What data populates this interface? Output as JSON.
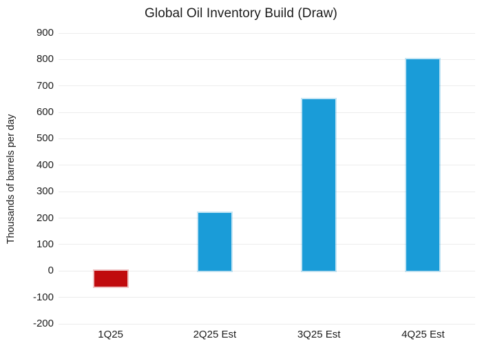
{
  "chart_data": {
    "type": "bar",
    "title": "Global Oil Inventory Build (Draw)",
    "xlabel": "",
    "ylabel": "Thousands of barrels per day",
    "categories": [
      "1Q25",
      "2Q25 Est",
      "3Q25 Est",
      "4Q25 Est"
    ],
    "values": [
      -60,
      220,
      650,
      800
    ],
    "bar_colors": [
      "#c00b0e",
      "#1a9cd8",
      "#1a9cd8",
      "#1a9cd8"
    ],
    "ylim": [
      -200,
      900
    ],
    "yticks": [
      900,
      800,
      700,
      600,
      500,
      400,
      300,
      200,
      100,
      0,
      -100,
      -200
    ],
    "grid": "horizontal",
    "legend": "none",
    "colors": {
      "negative_bar": "#c00b0e",
      "positive_bar": "#1a9cd8",
      "gridline": "#ececec",
      "text": "#1b1b1b",
      "background": "#ffffff"
    }
  }
}
